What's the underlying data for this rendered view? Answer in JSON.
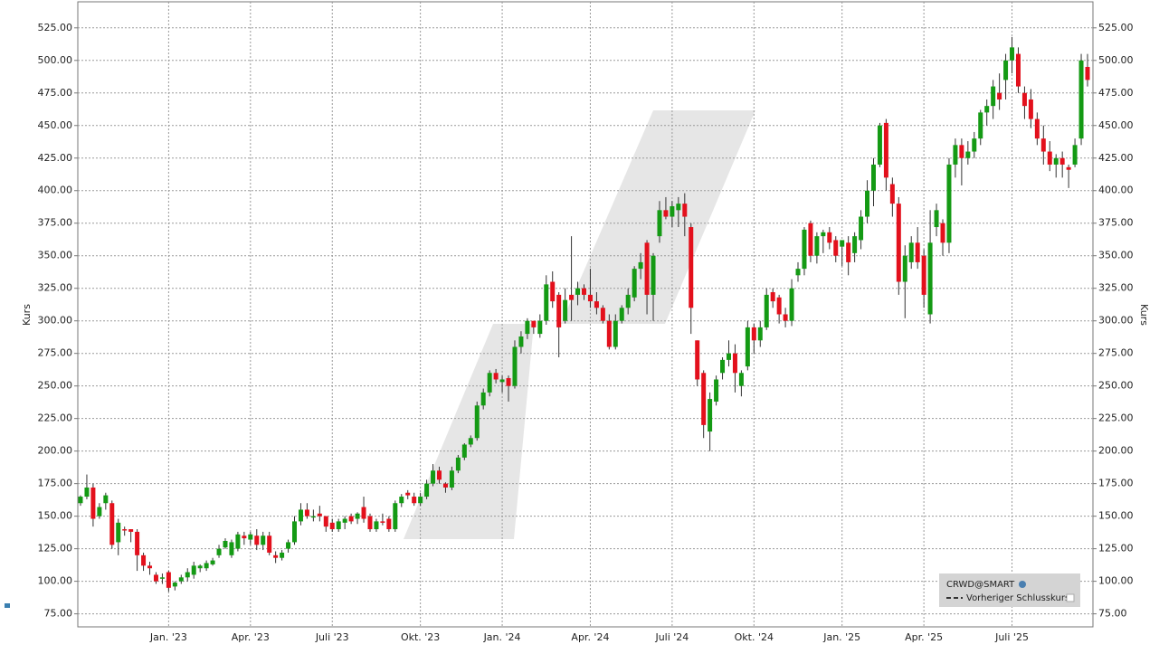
{
  "chart_data": {
    "type": "candlestick",
    "y_label": "Kurs",
    "legend": [
      "CRWD@SMART",
      "Vorheriger Schlusskurs"
    ],
    "up_color": "#149a14",
    "down_color": "#e3101c",
    "grid": true,
    "ylim": [
      65,
      545
    ],
    "yticks": [
      {
        "value": 75,
        "label": "75.00"
      },
      {
        "value": 100,
        "label": "100.00"
      },
      {
        "value": 125,
        "label": "125.00"
      },
      {
        "value": 150,
        "label": "150.00"
      },
      {
        "value": 175,
        "label": "175.00"
      },
      {
        "value": 200,
        "label": "200.00"
      },
      {
        "value": 225,
        "label": "225.00"
      },
      {
        "value": 250,
        "label": "250.00"
      },
      {
        "value": 275,
        "label": "275.00"
      },
      {
        "value": 300,
        "label": "300.00"
      },
      {
        "value": 325,
        "label": "325.00"
      },
      {
        "value": 350,
        "label": "350.00"
      },
      {
        "value": 375,
        "label": "375.00"
      },
      {
        "value": 400,
        "label": "400.00"
      },
      {
        "value": 425,
        "label": "425.00"
      },
      {
        "value": 450,
        "label": "450.00"
      },
      {
        "value": 475,
        "label": "475.00"
      },
      {
        "value": 500,
        "label": "500.00"
      },
      {
        "value": 525,
        "label": "525.00"
      }
    ],
    "categories": [
      null,
      null,
      null,
      null,
      null,
      null,
      null,
      null,
      null,
      null,
      null,
      null,
      null,
      null,
      "Jan. '23",
      null,
      null,
      null,
      null,
      null,
      null,
      null,
      null,
      null,
      null,
      null,
      null,
      "Apr. '23",
      null,
      null,
      null,
      null,
      null,
      null,
      null,
      null,
      null,
      null,
      null,
      null,
      "Juli '23",
      null,
      null,
      null,
      null,
      null,
      null,
      null,
      null,
      null,
      null,
      null,
      null,
      null,
      "Okt. '23",
      null,
      null,
      null,
      null,
      null,
      null,
      null,
      null,
      null,
      null,
      null,
      null,
      "Jan. '24",
      null,
      null,
      null,
      null,
      null,
      null,
      null,
      null,
      null,
      null,
      null,
      null,
      null,
      "Apr. '24",
      null,
      null,
      null,
      null,
      null,
      null,
      null,
      null,
      null,
      null,
      null,
      null,
      "Juli '24",
      null,
      null,
      null,
      null,
      null,
      null,
      null,
      null,
      null,
      null,
      null,
      null,
      "Okt. '24",
      null,
      null,
      null,
      null,
      null,
      null,
      null,
      null,
      null,
      null,
      null,
      null,
      null,
      "Jan. '25",
      null,
      null,
      null,
      null,
      null,
      null,
      null,
      null,
      null,
      null,
      null,
      null,
      "Apr. '25",
      null,
      null,
      null,
      null,
      null,
      null,
      null,
      null,
      null,
      null,
      null,
      null,
      null,
      "Juli '25",
      null,
      null,
      null,
      null,
      null,
      null,
      null,
      null,
      null,
      null,
      null,
      null
    ],
    "ohlc": [
      [
        160,
        166,
        158,
        165
      ],
      [
        165,
        182,
        163,
        172
      ],
      [
        172,
        175,
        142,
        148
      ],
      [
        150,
        160,
        148,
        157
      ],
      [
        160,
        168,
        155,
        166
      ],
      [
        160,
        162,
        125,
        128
      ],
      [
        130,
        148,
        120,
        145
      ],
      [
        140,
        142,
        135,
        139
      ],
      [
        140,
        140,
        130,
        138
      ],
      [
        138,
        140,
        108,
        120
      ],
      [
        120,
        122,
        108,
        112
      ],
      [
        112,
        115,
        105,
        110
      ],
      [
        105,
        107,
        98,
        100
      ],
      [
        102,
        106,
        98,
        103
      ],
      [
        107,
        108,
        92,
        95
      ],
      [
        96,
        100,
        93,
        99
      ],
      [
        100,
        105,
        98,
        103
      ],
      [
        103,
        110,
        100,
        107
      ],
      [
        105,
        115,
        102,
        112
      ],
      [
        110,
        113,
        107,
        112
      ],
      [
        110,
        116,
        108,
        114
      ],
      [
        113,
        118,
        112,
        116
      ],
      [
        120,
        128,
        118,
        125
      ],
      [
        126,
        133,
        125,
        131
      ],
      [
        120,
        132,
        118,
        130
      ],
      [
        125,
        138,
        123,
        136
      ],
      [
        135,
        138,
        128,
        133
      ],
      [
        132,
        138,
        128,
        136
      ],
      [
        135,
        140,
        124,
        128
      ],
      [
        128,
        138,
        124,
        135
      ],
      [
        135,
        138,
        120,
        122
      ],
      [
        120,
        123,
        114,
        118
      ],
      [
        118,
        124,
        116,
        122
      ],
      [
        125,
        132,
        122,
        130
      ],
      [
        130,
        150,
        128,
        146
      ],
      [
        146,
        160,
        143,
        155
      ],
      [
        155,
        160,
        148,
        150
      ],
      [
        150,
        155,
        146,
        150
      ],
      [
        152,
        158,
        146,
        150
      ],
      [
        150,
        150,
        138,
        142
      ],
      [
        145,
        148,
        138,
        140
      ],
      [
        140,
        148,
        138,
        146
      ],
      [
        145,
        150,
        140,
        148
      ],
      [
        150,
        152,
        144,
        146
      ],
      [
        148,
        153,
        144,
        152
      ],
      [
        157,
        165,
        145,
        148
      ],
      [
        150,
        152,
        138,
        140
      ],
      [
        140,
        148,
        138,
        146
      ],
      [
        146,
        152,
        143,
        145
      ],
      [
        148,
        150,
        138,
        140
      ],
      [
        140,
        162,
        138,
        160
      ],
      [
        160,
        167,
        157,
        165
      ],
      [
        168,
        170,
        163,
        166
      ],
      [
        165,
        168,
        158,
        160
      ],
      [
        160,
        168,
        158,
        165
      ],
      [
        165,
        178,
        163,
        175
      ],
      [
        175,
        190,
        173,
        185
      ],
      [
        185,
        188,
        175,
        178
      ],
      [
        175,
        176,
        168,
        172
      ],
      [
        172,
        188,
        170,
        185
      ],
      [
        185,
        197,
        183,
        195
      ],
      [
        195,
        206,
        193,
        205
      ],
      [
        205,
        212,
        203,
        210
      ],
      [
        210,
        238,
        208,
        235
      ],
      [
        235,
        248,
        232,
        245
      ],
      [
        245,
        262,
        242,
        260
      ],
      [
        260,
        263,
        252,
        255
      ],
      [
        253,
        258,
        245,
        255
      ],
      [
        256,
        258,
        238,
        250
      ],
      [
        250,
        285,
        248,
        280
      ],
      [
        280,
        292,
        275,
        288
      ],
      [
        290,
        302,
        286,
        300
      ],
      [
        300,
        300,
        290,
        295
      ],
      [
        290,
        305,
        287,
        300
      ],
      [
        300,
        335,
        297,
        328
      ],
      [
        330,
        338,
        310,
        315
      ],
      [
        320,
        322,
        272,
        295
      ],
      [
        300,
        325,
        298,
        316
      ],
      [
        320,
        365,
        300,
        316
      ],
      [
        320,
        330,
        312,
        325
      ],
      [
        325,
        328,
        316,
        320
      ],
      [
        320,
        340,
        310,
        315
      ],
      [
        315,
        322,
        305,
        310
      ],
      [
        310,
        312,
        298,
        300
      ],
      [
        300,
        305,
        278,
        280
      ],
      [
        280,
        305,
        278,
        300
      ],
      [
        300,
        312,
        298,
        310
      ],
      [
        310,
        325,
        305,
        320
      ],
      [
        318,
        342,
        315,
        340
      ],
      [
        340,
        352,
        332,
        345
      ],
      [
        360,
        362,
        305,
        320
      ],
      [
        320,
        352,
        300,
        350
      ],
      [
        365,
        392,
        360,
        385
      ],
      [
        385,
        395,
        378,
        380
      ],
      [
        380,
        392,
        372,
        388
      ],
      [
        385,
        395,
        372,
        390
      ],
      [
        390,
        398,
        365,
        380
      ],
      [
        372,
        375,
        290,
        310
      ],
      [
        285,
        285,
        250,
        255
      ],
      [
        260,
        262,
        210,
        220
      ],
      [
        215,
        245,
        200,
        240
      ],
      [
        238,
        258,
        235,
        255
      ],
      [
        260,
        272,
        255,
        270
      ],
      [
        270,
        285,
        265,
        275
      ],
      [
        275,
        282,
        245,
        260
      ],
      [
        250,
        262,
        242,
        260
      ],
      [
        265,
        300,
        262,
        295
      ],
      [
        295,
        298,
        275,
        285
      ],
      [
        285,
        300,
        280,
        295
      ],
      [
        295,
        325,
        293,
        320
      ],
      [
        322,
        325,
        310,
        315
      ],
      [
        318,
        320,
        298,
        305
      ],
      [
        305,
        310,
        295,
        300
      ],
      [
        300,
        332,
        296,
        325
      ],
      [
        335,
        345,
        330,
        340
      ],
      [
        340,
        372,
        335,
        370
      ],
      [
        375,
        377,
        345,
        350
      ],
      [
        350,
        368,
        344,
        365
      ],
      [
        365,
        370,
        352,
        368
      ],
      [
        368,
        372,
        355,
        360
      ],
      [
        362,
        365,
        345,
        350
      ],
      [
        357,
        362,
        342,
        362
      ],
      [
        360,
        365,
        335,
        345
      ],
      [
        352,
        368,
        345,
        365
      ],
      [
        362,
        385,
        355,
        380
      ],
      [
        380,
        408,
        375,
        400
      ],
      [
        400,
        425,
        388,
        420
      ],
      [
        420,
        452,
        418,
        450
      ],
      [
        452,
        455,
        400,
        410
      ],
      [
        405,
        410,
        380,
        390
      ],
      [
        390,
        395,
        320,
        330
      ],
      [
        330,
        358,
        302,
        350
      ],
      [
        345,
        365,
        340,
        360
      ],
      [
        360,
        372,
        340,
        345
      ],
      [
        350,
        355,
        310,
        320
      ],
      [
        305,
        385,
        298,
        360
      ],
      [
        372,
        390,
        365,
        385
      ],
      [
        375,
        378,
        350,
        360
      ],
      [
        360,
        425,
        352,
        420
      ],
      [
        420,
        440,
        410,
        435
      ],
      [
        435,
        440,
        404,
        425
      ],
      [
        425,
        438,
        420,
        430
      ],
      [
        430,
        445,
        425,
        440
      ],
      [
        440,
        462,
        435,
        460
      ],
      [
        460,
        470,
        450,
        465
      ],
      [
        465,
        485,
        455,
        480
      ],
      [
        475,
        490,
        462,
        470
      ],
      [
        485,
        505,
        470,
        500
      ],
      [
        500,
        518,
        490,
        510
      ],
      [
        505,
        510,
        475,
        480
      ],
      [
        475,
        480,
        455,
        465
      ],
      [
        470,
        478,
        448,
        455
      ],
      [
        455,
        460,
        435,
        440
      ],
      [
        440,
        450,
        420,
        430
      ],
      [
        430,
        438,
        415,
        420
      ],
      [
        420,
        428,
        410,
        425
      ],
      [
        425,
        430,
        410,
        420
      ],
      [
        418,
        420,
        402,
        416
      ],
      [
        420,
        440,
        418,
        435
      ],
      [
        440,
        505,
        435,
        500
      ],
      [
        495,
        505,
        480,
        485
      ]
    ]
  }
}
